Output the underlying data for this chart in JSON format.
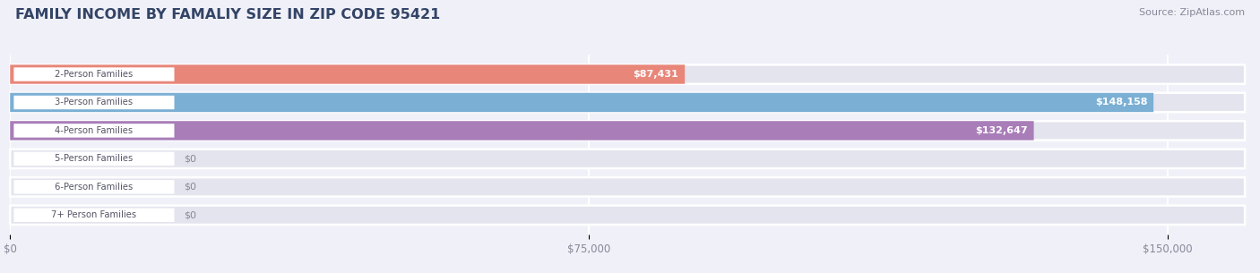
{
  "title": "FAMILY INCOME BY FAMALIY SIZE IN ZIP CODE 95421",
  "source": "Source: ZipAtlas.com",
  "categories": [
    "2-Person Families",
    "3-Person Families",
    "4-Person Families",
    "5-Person Families",
    "6-Person Families",
    "7+ Person Families"
  ],
  "values": [
    87431,
    148158,
    132647,
    0,
    0,
    0
  ],
  "bar_colors": [
    "#E8867A",
    "#7BAFD4",
    "#A87DB8",
    "#6DC4B8",
    "#A8AEDD",
    "#F4A8BC"
  ],
  "value_labels": [
    "$87,431",
    "$148,158",
    "$132,647",
    "$0",
    "$0",
    "$0"
  ],
  "xlim_max": 160000,
  "xticks": [
    0,
    75000,
    150000
  ],
  "xtick_labels": [
    "$0",
    "$75,000",
    "$150,000"
  ],
  "background_color": "#f0f0f8",
  "bar_bg_color": "#e4e4ee",
  "bar_height": 0.68,
  "label_pill_color": "#ffffff",
  "label_text_color": "#555566",
  "value_label_color_inside": "#ffffff",
  "value_label_color_outside": "#888899",
  "figsize": [
    14.06,
    3.05
  ],
  "dpi": 100,
  "title_color": "#334466",
  "source_color": "#888899",
  "grid_color": "#ffffff"
}
